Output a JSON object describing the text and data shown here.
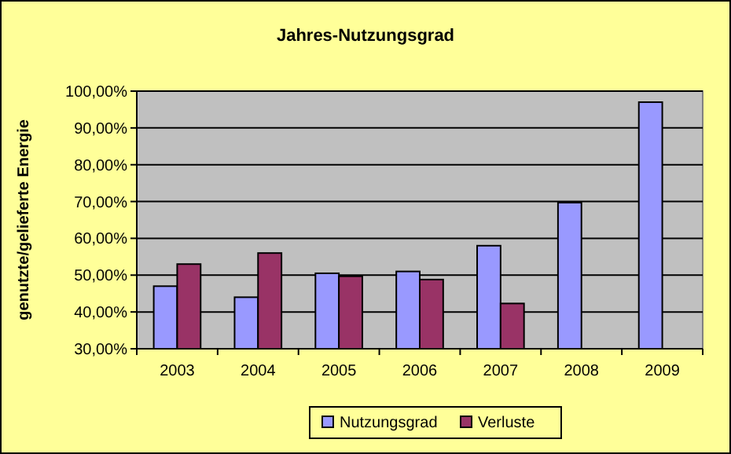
{
  "chart_data": {
    "type": "bar",
    "title": "Jahres-Nutzungsgrad",
    "ylabel": "genutzte/gelieferte Energie",
    "categories": [
      "2003",
      "2004",
      "2005",
      "2006",
      "2007",
      "2008",
      "2009"
    ],
    "series": [
      {
        "name": "Nutzungsgrad",
        "color": "#9999ff",
        "values": [
          47,
          44,
          50.5,
          51,
          58,
          69.7,
          97
        ]
      },
      {
        "name": "Verluste",
        "color": "#993366",
        "values": [
          53,
          56,
          49.7,
          48.8,
          42.3,
          null,
          null
        ]
      }
    ],
    "ylim": [
      30,
      100
    ],
    "yticks": [
      {
        "value": 30,
        "label": "30,00%"
      },
      {
        "value": 40,
        "label": "40,00%"
      },
      {
        "value": 50,
        "label": "50,00%"
      },
      {
        "value": 60,
        "label": "60,00%"
      },
      {
        "value": 70,
        "label": "70,00%"
      },
      {
        "value": 80,
        "label": "80,00%"
      },
      {
        "value": 90,
        "label": "90,00%"
      },
      {
        "value": 100,
        "label": "100,00%"
      }
    ],
    "grid": "y",
    "legend": "bottom"
  }
}
